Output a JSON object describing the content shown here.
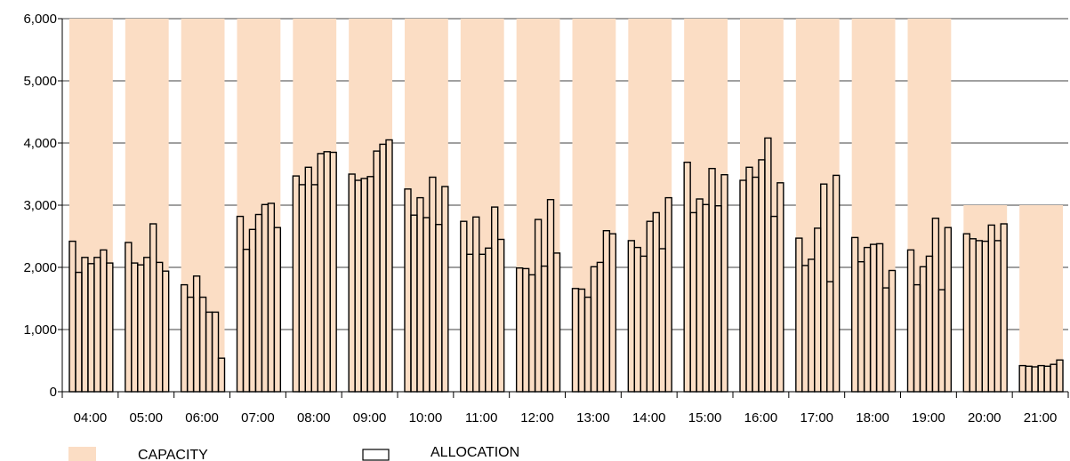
{
  "chart_data": {
    "type": "bar",
    "title": "",
    "xlabel": "",
    "ylabel": "",
    "ylim": [
      0,
      6000
    ],
    "yticks": [
      0,
      1000,
      2000,
      3000,
      4000,
      5000,
      6000
    ],
    "ytick_labels": [
      "0",
      "1,000",
      "2,000",
      "3,000",
      "4,000",
      "5,000",
      "6,000"
    ],
    "grid": "horizontal",
    "legend_position": "bottom-left",
    "categories": [
      "04:00",
      "05:00",
      "06:00",
      "07:00",
      "08:00",
      "09:00",
      "10:00",
      "11:00",
      "12:00",
      "13:00",
      "14:00",
      "15:00",
      "16:00",
      "17:00",
      "18:00",
      "19:00",
      "20:00",
      "21:00"
    ],
    "series": [
      {
        "name": "CAPACITY",
        "color": "#FBDDC4",
        "values": [
          6000,
          6000,
          6000,
          6000,
          6000,
          6000,
          6000,
          6000,
          6000,
          6000,
          6000,
          6000,
          6000,
          6000,
          6000,
          6000,
          3000,
          3000
        ]
      },
      {
        "name": "ALLOCATION",
        "color": "#FBDDC4",
        "stroke": "#000000",
        "sub_intervals_per_category": 8,
        "values": [
          [
            2420,
            1920,
            2160,
            2060,
            2160,
            2280,
            2070,
            null
          ],
          [
            2400,
            2070,
            2040,
            2160,
            2700,
            2080,
            1940,
            null
          ],
          [
            1720,
            1520,
            1860,
            1520,
            1280,
            1280,
            540,
            null
          ],
          [
            2820,
            2290,
            2610,
            2850,
            3010,
            3030,
            2640,
            null
          ],
          [
            3470,
            3330,
            3610,
            3330,
            3830,
            3860,
            3850,
            null
          ],
          [
            3500,
            3400,
            3430,
            3460,
            3870,
            3980,
            4050,
            null
          ],
          [
            3260,
            2840,
            3120,
            2800,
            3450,
            2690,
            3300,
            null
          ],
          [
            2740,
            2210,
            2810,
            2210,
            2310,
            2970,
            2450,
            null
          ],
          [
            1990,
            1980,
            1880,
            2770,
            2020,
            3090,
            2230,
            null
          ],
          [
            1660,
            1650,
            1520,
            2010,
            2080,
            2590,
            2540,
            null
          ],
          [
            2430,
            2320,
            2180,
            2740,
            2880,
            2300,
            3120,
            null
          ],
          [
            3690,
            2880,
            3100,
            3010,
            3590,
            2990,
            3490,
            null
          ],
          [
            3400,
            3610,
            3450,
            3730,
            4080,
            2820,
            3360,
            null
          ],
          [
            2470,
            2030,
            2130,
            2630,
            3340,
            1770,
            3480,
            null
          ],
          [
            2480,
            2090,
            2320,
            2370,
            2380,
            1670,
            1950,
            null
          ],
          [
            2280,
            1720,
            2010,
            2180,
            2790,
            1640,
            2640,
            null
          ],
          [
            2540,
            2460,
            2430,
            2420,
            2680,
            2430,
            2700,
            null
          ],
          [
            420,
            410,
            400,
            420,
            410,
            440,
            510,
            null
          ]
        ]
      }
    ]
  }
}
